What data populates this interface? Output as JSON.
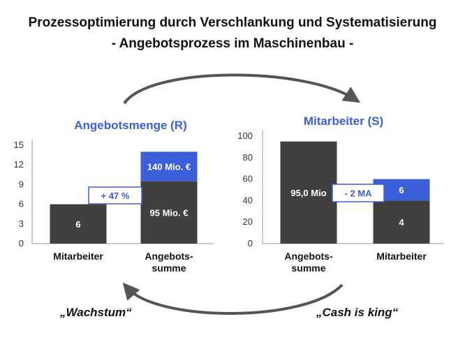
{
  "title_line1": "Prozessoptimierung durch Verschlankung und Systematisierung",
  "title_line2": "- Angebotsprozess im Maschinenbau -",
  "quote_left": "„Wachstum“",
  "quote_right": "„Cash is king“",
  "colors": {
    "dark": "#404040",
    "blue": "#3a5fd9",
    "title_blue": "#3a5fd9",
    "arrow": "#555555"
  },
  "chart_data": [
    {
      "type": "bar",
      "title": "Angebotsmenge (R)",
      "categories": [
        "Mitarbeiter",
        "Angebots-\nsumme"
      ],
      "y_ticks": [
        "0",
        "3",
        "6",
        "9",
        "12",
        "15"
      ],
      "ylim": [
        0,
        15
      ],
      "series": [
        {
          "values": [
            6,
            9.5
          ],
          "labels": [
            "6",
            "95 Mio. €"
          ]
        },
        {
          "values": [
            0,
            4.5
          ],
          "labels": [
            "",
            "140 Mio. €"
          ]
        }
      ],
      "annotation": "+ 47 %"
    },
    {
      "type": "bar",
      "title": "Mitarbeiter (S)",
      "categories": [
        "Angebots-\nsumme",
        "Mitarbeiter"
      ],
      "y_ticks": [
        "0",
        "20",
        "40",
        "60",
        "80",
        "100"
      ],
      "ylim": [
        0,
        100
      ],
      "series": [
        {
          "values": [
            95,
            40
          ],
          "labels": [
            "95,0 Mio",
            "4"
          ]
        },
        {
          "values": [
            0,
            20
          ],
          "labels": [
            "",
            "6"
          ]
        }
      ],
      "annotation": "- 2 MA"
    }
  ]
}
